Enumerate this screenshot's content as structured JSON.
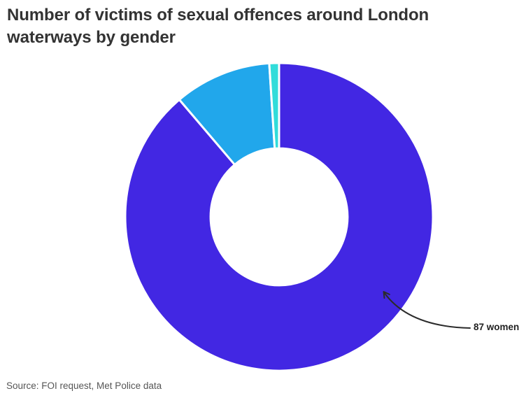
{
  "page": {
    "background": "#ffffff"
  },
  "header": {
    "title": "Number of victims of sexual offences around London waterways by gender"
  },
  "footer": {
    "source": "Source: FOI request, Met Police data"
  },
  "annotation": {
    "label": "87 women"
  },
  "colors": {
    "title_text": "#333333",
    "source_text": "#565656",
    "annotation_text": "#222222",
    "arrow": "#2b2b2b",
    "slice_purple": "#4227e3",
    "slice_light_blue": "#21a7eb",
    "slice_teal": "#31dcda",
    "separator": "#ffffff"
  },
  "chart_data": {
    "type": "pie",
    "subtype": "donut",
    "title": "Number of victims of sexual offences around London waterways by gender",
    "unit": "victims",
    "total_estimated": 98,
    "slices": [
      {
        "label": "87 women",
        "value": 87,
        "share_pct": 88.8,
        "color": "#4227e3"
      },
      {
        "label": "",
        "value": 10,
        "share_pct": 10.2,
        "color": "#21a7eb",
        "note": "unlabeled slice; value estimated from arc angle"
      },
      {
        "label": "",
        "value": 1,
        "share_pct": 1.0,
        "color": "#31dcda",
        "note": "unlabeled slice; value estimated from arc angle"
      }
    ],
    "start_angle_deg": 0,
    "direction": "clockwise",
    "inner_radius_ratio": 0.445,
    "separator_color": "#ffffff",
    "legend": "none",
    "annotations": [
      {
        "text": "87 women",
        "slice_index": 0
      }
    ]
  }
}
